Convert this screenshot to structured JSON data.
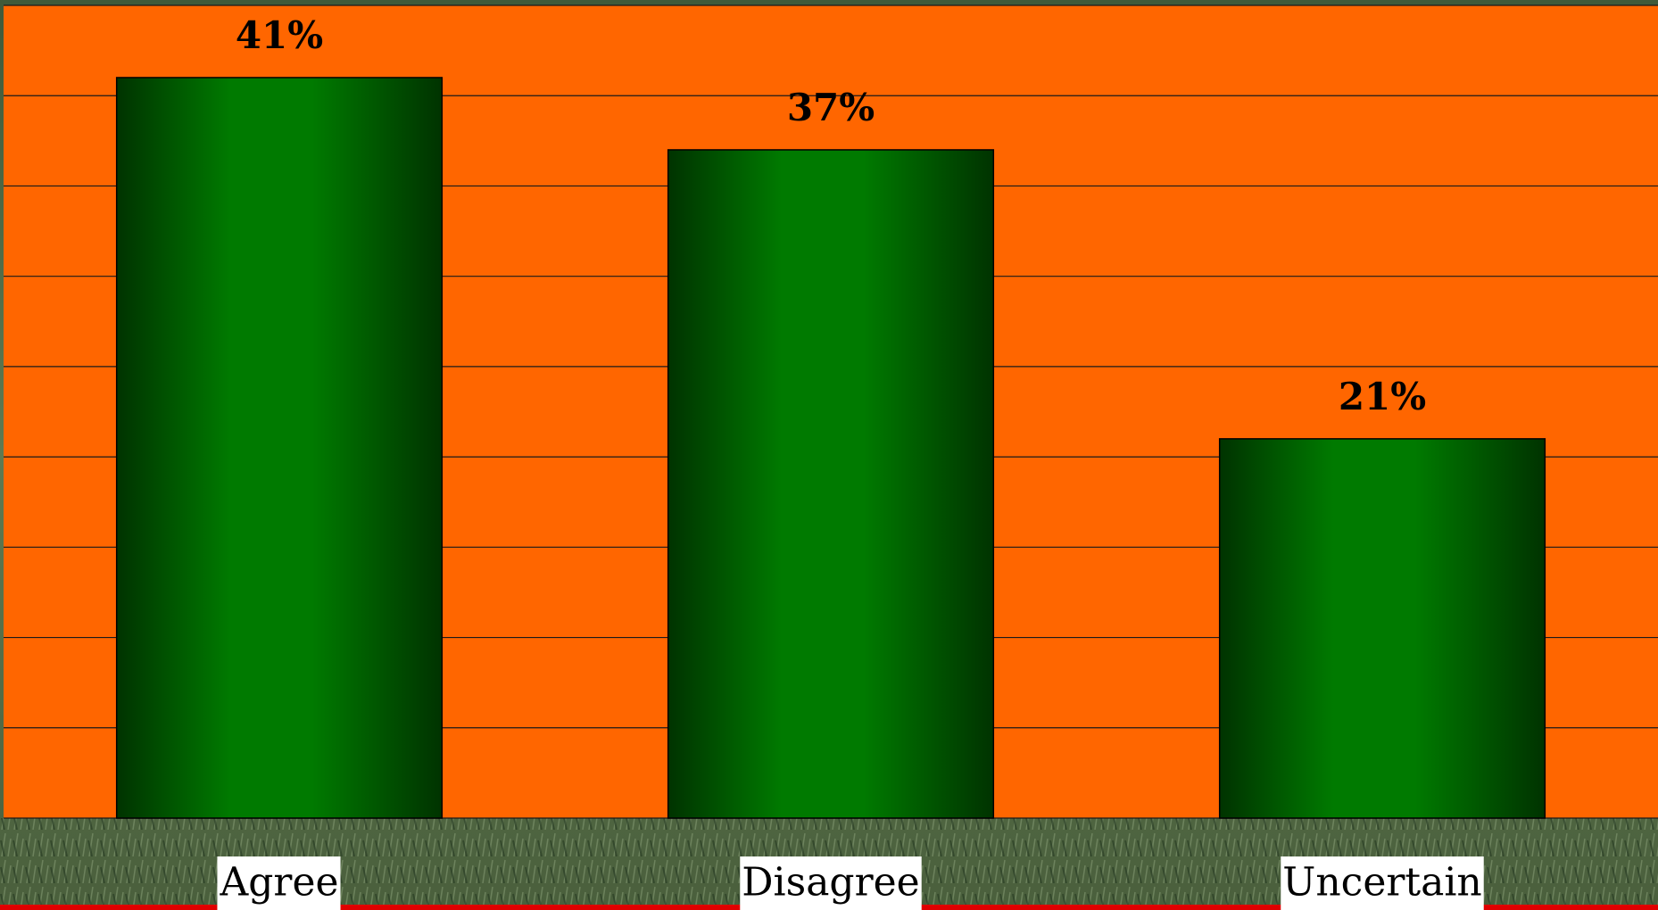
{
  "chart_data": {
    "type": "bar",
    "categories": [
      "Agree",
      "Disagree",
      "Uncertain"
    ],
    "values": [
      41,
      37,
      21
    ],
    "value_labels": [
      "41%",
      "37%",
      "21%"
    ],
    "color": "#007a00",
    "background": "#ff6600",
    "ylim": [
      0,
      45
    ],
    "yticks": [
      0,
      5,
      10,
      15,
      20,
      25,
      30,
      35,
      40,
      45
    ],
    "grid": true
  }
}
